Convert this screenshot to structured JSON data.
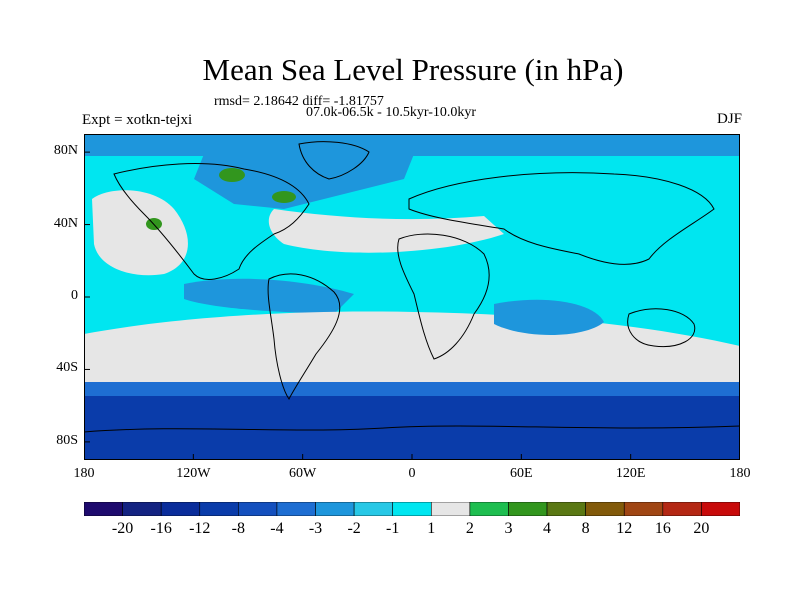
{
  "title": "Mean Sea Level Pressure (in hPa)",
  "stats": "rmsd= 2.18642 diff= -1.81757",
  "period": "07.0k-06.5k - 10.5kyr-10.0kyr",
  "experiment": "Expt = xotkn-tejxi",
  "season": "DJF",
  "map": {
    "projection": "cylindrical equidistant",
    "lon_range": [
      -180,
      180
    ],
    "lat_range": [
      -90,
      90
    ],
    "lat_ticks": [
      {
        "value": 80,
        "label": "80N"
      },
      {
        "value": 40,
        "label": "40N"
      },
      {
        "value": 0,
        "label": "0"
      },
      {
        "value": -40,
        "label": "40S"
      },
      {
        "value": -80,
        "label": "80S"
      }
    ],
    "lon_ticks": [
      {
        "value": -180,
        "label": "180"
      },
      {
        "value": -120,
        "label": "120W"
      },
      {
        "value": -60,
        "label": "60W"
      },
      {
        "value": 0,
        "label": "0"
      },
      {
        "value": 60,
        "label": "60E"
      },
      {
        "value": 120,
        "label": "120E"
      },
      {
        "value": 180,
        "label": "180"
      }
    ]
  },
  "colorbar": {
    "labels": [
      "-20",
      "-16",
      "-12",
      "-8",
      "-4",
      "-3",
      "-2",
      "-1",
      "1",
      "2",
      "3",
      "4",
      "8",
      "12",
      "16",
      "20"
    ],
    "colors": [
      "#1e0a6e",
      "#142382",
      "#0a2d9b",
      "#0a3caa",
      "#1450be",
      "#1e6ed2",
      "#1e96dc",
      "#28c8e6",
      "#00e6f0",
      "#e6e6e6",
      "#1ebe50",
      "#32961e",
      "#5a7814",
      "#825a0a",
      "#a04614",
      "#b42814",
      "#c80a0a"
    ]
  }
}
